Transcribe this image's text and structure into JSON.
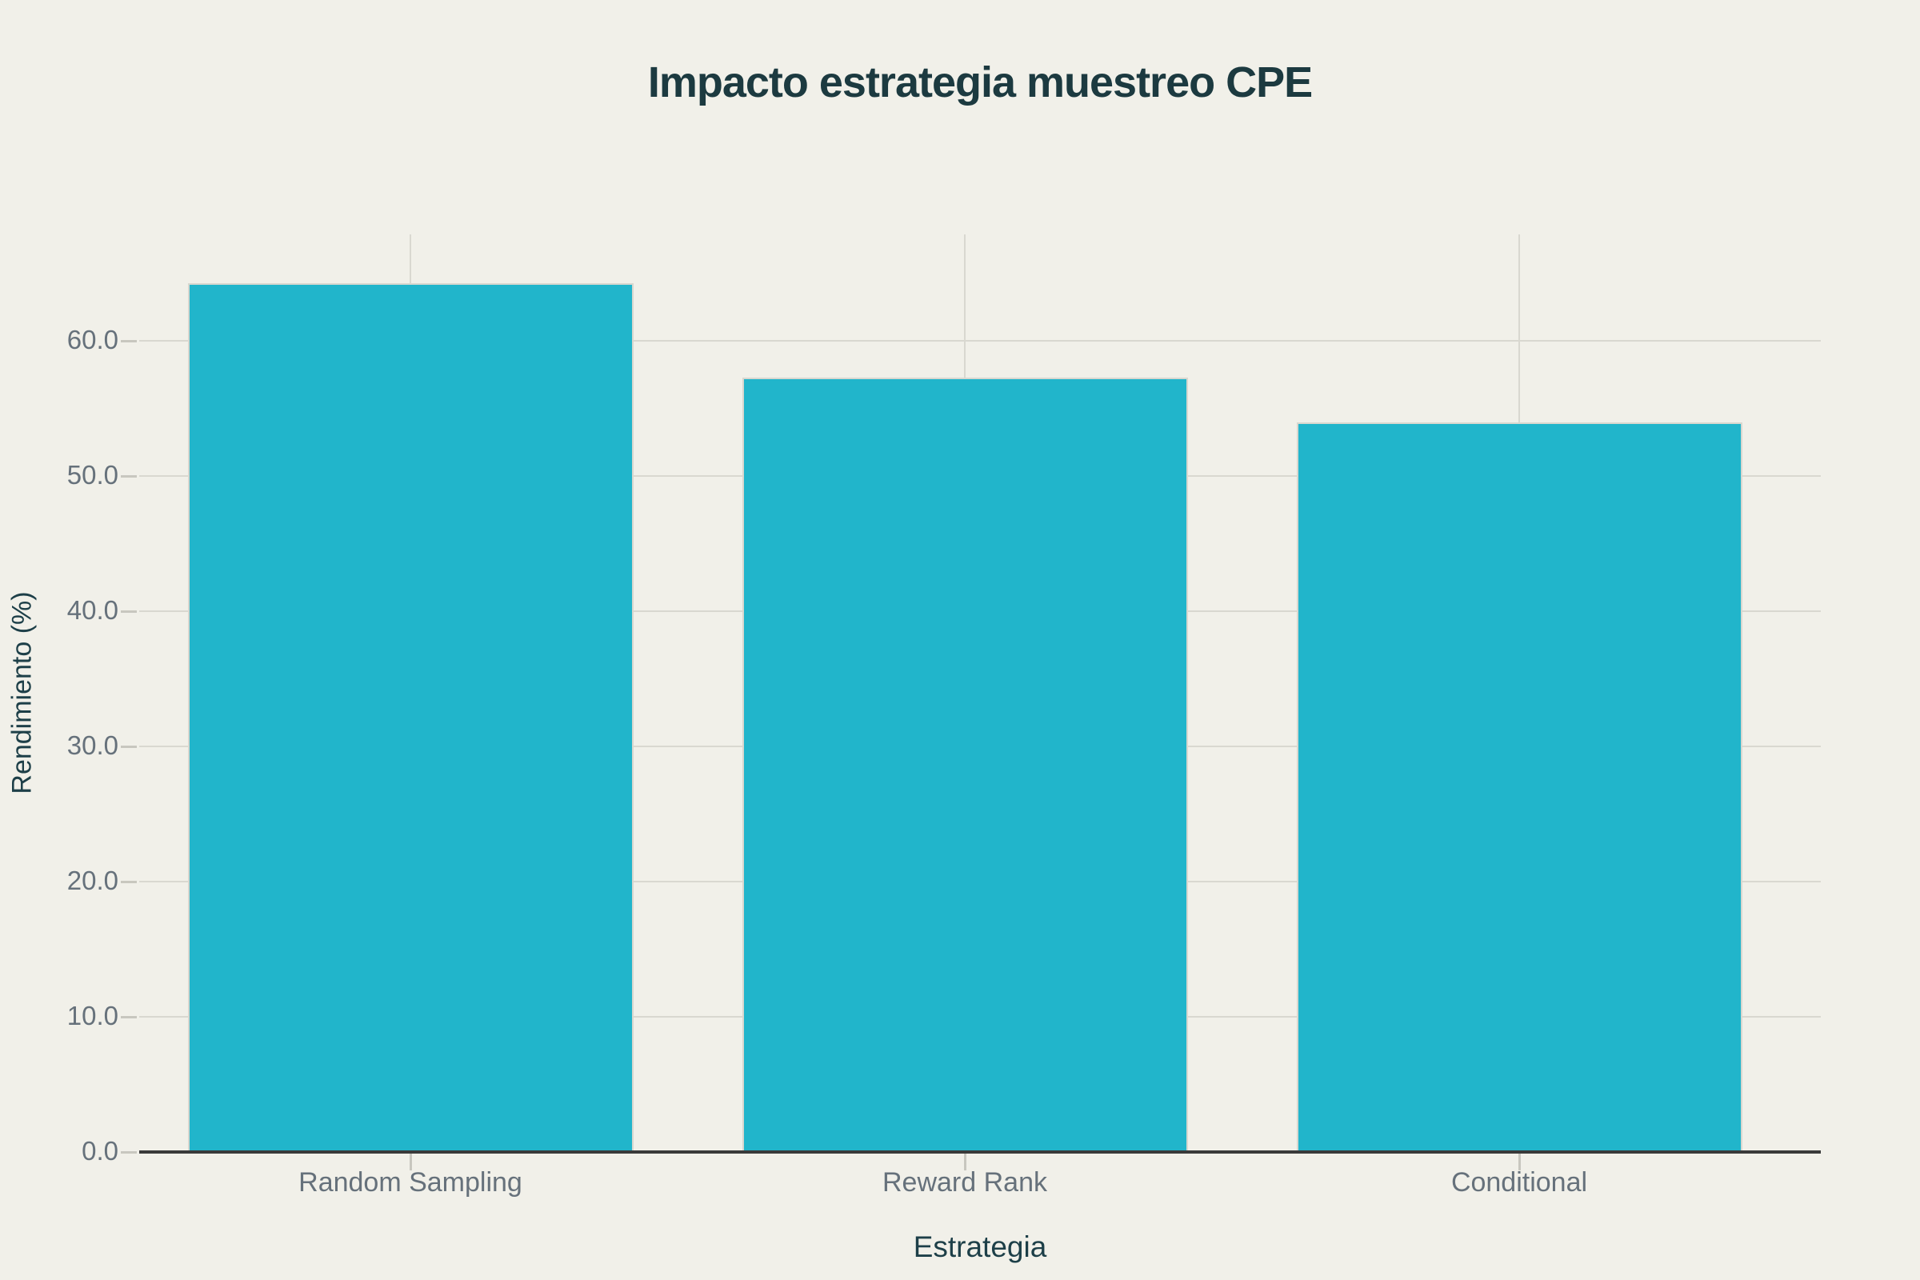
{
  "chart_data": {
    "type": "bar",
    "title": "Impacto estrategia muestreo CPE",
    "xlabel": "Estrategia",
    "ylabel": "Rendimiento (%)",
    "categories": [
      "Random Sampling",
      "Reward Rank",
      "Conditional"
    ],
    "values": [
      64.3,
      57.3,
      54.0
    ],
    "ylim": [
      0,
      68
    ],
    "yticks": [
      0,
      10,
      20,
      30,
      40,
      50,
      60
    ],
    "ytick_decimals": 1,
    "grid": true,
    "legend_position": "none",
    "colors": {
      "background": "#f1f0e9",
      "bar_fill": "#21b5cb",
      "bar_border": "#d8d7cf",
      "title_text": "#1c3a40",
      "axis_title_text": "#1d3f48",
      "tick_text": "#66717b",
      "grid_line": "#d9d8d0",
      "tick_mark": "#c8c7bf",
      "axis_line": "#3a3a3a"
    }
  }
}
